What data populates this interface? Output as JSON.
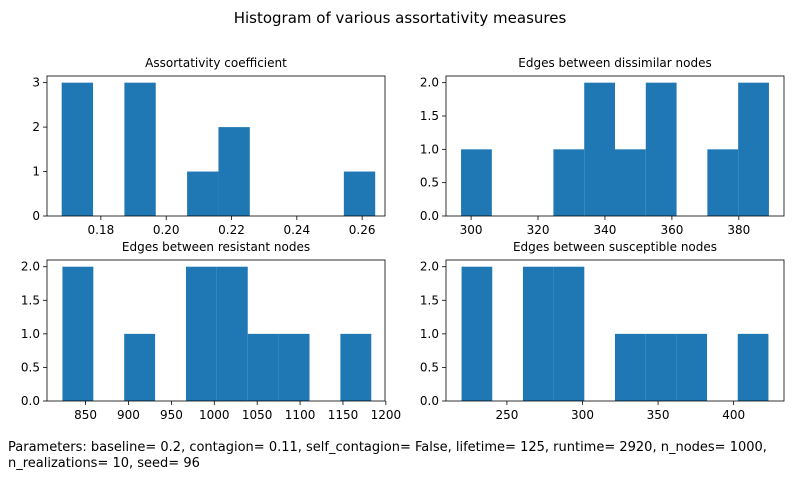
{
  "figure": {
    "title": "Histogram of various assortativity measures",
    "footer": "Parameters: baseline= 0.2, contagion= 0.11, self_contagion= False, lifetime= 125, runtime= 2920, n_nodes= 1000, n_realizations= 10, seed= 96"
  },
  "colors": {
    "bar": "#1f77b4",
    "axis": "#000000"
  },
  "chart_data": [
    {
      "type": "bar",
      "title": "Assortativity coefficient",
      "xlim": [
        0.1635,
        0.267
      ],
      "ylim": [
        0,
        3.15
      ],
      "xticks": [
        0.18,
        0.2,
        0.22,
        0.24,
        0.26
      ],
      "xtick_labels": [
        "0.18",
        "0.20",
        "0.22",
        "0.24",
        "0.26"
      ],
      "yticks": [
        0,
        1,
        2,
        3
      ],
      "ytick_labels": [
        "0",
        "1",
        "2",
        "3"
      ],
      "bin_edges": [
        0.168,
        0.1776,
        0.1872,
        0.1968,
        0.2064,
        0.216,
        0.2256,
        0.2352,
        0.2448,
        0.2544,
        0.264
      ],
      "counts": [
        3,
        0,
        3,
        0,
        1,
        2,
        0,
        0,
        0,
        1
      ]
    },
    {
      "type": "bar",
      "title": "Edges between dissimilar nodes",
      "xlim": [
        292.5,
        393.5
      ],
      "ylim": [
        0,
        2.1
      ],
      "xticks": [
        300,
        320,
        340,
        360,
        380
      ],
      "xtick_labels": [
        "300",
        "320",
        "340",
        "360",
        "380"
      ],
      "yticks": [
        0,
        0.5,
        1.0,
        1.5,
        2.0
      ],
      "ytick_labels": [
        "0.0",
        "0.5",
        "1.0",
        "1.5",
        "2.0"
      ],
      "bin_edges": [
        297,
        306.2,
        315.4,
        324.6,
        333.8,
        343,
        352.2,
        361.4,
        370.6,
        379.8,
        389
      ],
      "counts": [
        1,
        0,
        0,
        1,
        2,
        1,
        2,
        0,
        1,
        2
      ]
    },
    {
      "type": "bar",
      "title": "Edges between resistant nodes",
      "xlim": [
        805,
        1199
      ],
      "ylim": [
        0,
        2.1
      ],
      "xticks": [
        850,
        900,
        950,
        1000,
        1050,
        1100,
        1150,
        1200
      ],
      "xtick_labels": [
        "850",
        "900",
        "950",
        "1000",
        "1050",
        "1100",
        "1150",
        "1200"
      ],
      "yticks": [
        0,
        0.5,
        1.0,
        1.5,
        2.0
      ],
      "ytick_labels": [
        "0.0",
        "0.5",
        "1.0",
        "1.5",
        "2.0"
      ],
      "bin_edges": [
        823,
        859,
        895,
        931,
        967,
        1003,
        1039,
        1075,
        1111,
        1147,
        1183
      ],
      "counts": [
        2,
        0,
        1,
        0,
        2,
        2,
        1,
        1,
        0,
        1
      ]
    },
    {
      "type": "bar",
      "title": "Edges between susceptible nodes",
      "xlim": [
        209.7,
        433.3
      ],
      "ylim": [
        0,
        2.1
      ],
      "xticks": [
        250,
        300,
        350,
        400
      ],
      "xtick_labels": [
        "250",
        "300",
        "350",
        "400"
      ],
      "yticks": [
        0,
        0.5,
        1.0,
        1.5,
        2.0
      ],
      "ytick_labels": [
        "0.0",
        "0.5",
        "1.0",
        "1.5",
        "2.0"
      ],
      "bin_edges": [
        220,
        240.3,
        260.6,
        280.9,
        301.2,
        321.5,
        341.8,
        362.1,
        382.4,
        402.7,
        423
      ],
      "counts": [
        2,
        0,
        2,
        2,
        0,
        1,
        1,
        1,
        0,
        1
      ]
    }
  ]
}
